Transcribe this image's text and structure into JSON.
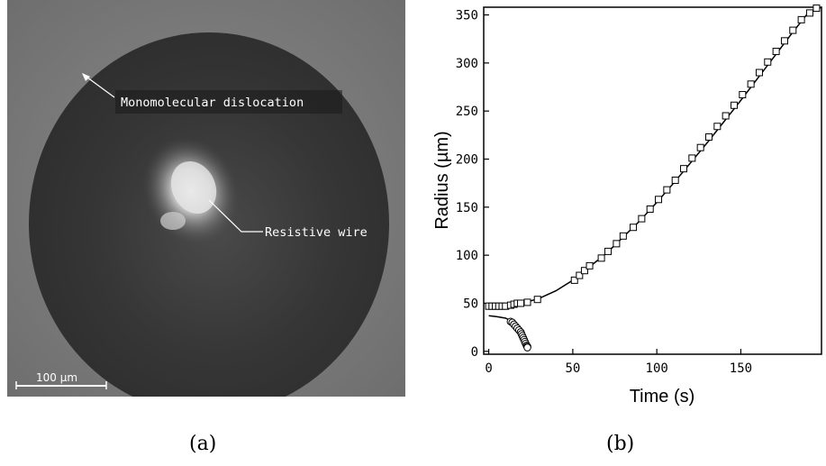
{
  "figure": {
    "caption_a": "(a)",
    "caption_b": "(b)"
  },
  "micrograph": {
    "label_dislocation": "Monomolecular dislocation",
    "label_wire": "Resistive wire",
    "scale_bar_label": "100 µm"
  },
  "chart_data": {
    "type": "scatter",
    "title": "",
    "xlabel": "Time (s)",
    "ylabel": "Radius (µm)",
    "xlim": [
      -3,
      198
    ],
    "ylim": [
      -3,
      358
    ],
    "xticks": [
      0,
      50,
      100,
      150
    ],
    "yticks": [
      0,
      50,
      100,
      150,
      200,
      250,
      300,
      350
    ],
    "grid": false,
    "series": [
      {
        "marker": "square",
        "x": [
          0,
          2,
          4,
          6,
          8,
          10,
          13,
          15,
          17,
          19,
          23,
          29,
          51,
          54,
          57,
          60,
          67,
          71,
          76,
          80,
          86,
          91,
          96,
          101,
          106,
          111,
          116,
          121,
          126,
          131,
          136,
          141,
          146,
          151,
          156,
          161,
          166,
          171,
          176,
          181,
          186,
          191,
          195
        ],
        "y": [
          47,
          47,
          47,
          47,
          47,
          47,
          48,
          49,
          50,
          50,
          51,
          54,
          74,
          79,
          84,
          89,
          97,
          104,
          112,
          120,
          129,
          138,
          148,
          158,
          168,
          178,
          190,
          201,
          212,
          223,
          234,
          245,
          256,
          267,
          278,
          290,
          301,
          312,
          323,
          334,
          345,
          352,
          357
        ]
      },
      {
        "marker": "circle",
        "x": [
          13,
          14,
          15,
          16,
          17,
          18,
          19,
          19.5,
          20,
          20.5,
          21,
          21.5,
          22,
          22.5,
          23,
          23
        ],
        "y": [
          31,
          30,
          28,
          26,
          24,
          22,
          20,
          18,
          16,
          14,
          12,
          10,
          8,
          6,
          5,
          4
        ]
      }
    ],
    "fit_lines": [
      {
        "x": [
          0,
          10,
          20,
          30,
          40,
          50,
          60,
          70,
          80,
          90,
          100,
          110,
          120,
          130,
          140,
          150,
          160,
          170,
          180,
          190,
          198
        ],
        "y": [
          47,
          47.5,
          50,
          55,
          63,
          74,
          88,
          102,
          119,
          136,
          155,
          175,
          196,
          217,
          239,
          261,
          284,
          307,
          330,
          352,
          369
        ]
      },
      {
        "x": [
          0,
          5,
          10,
          13,
          16,
          19,
          21,
          23
        ],
        "y": [
          37,
          36,
          34.5,
          32,
          27,
          20,
          13,
          5
        ]
      }
    ]
  }
}
